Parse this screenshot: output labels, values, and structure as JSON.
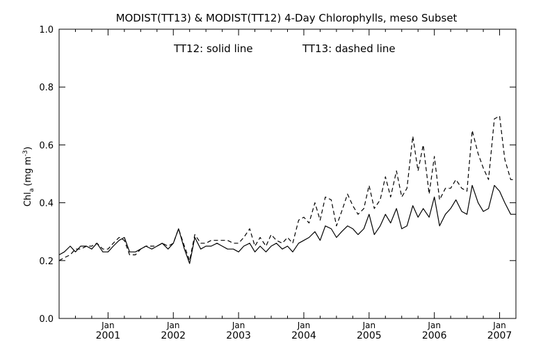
{
  "chart_data": {
    "type": "line",
    "title": "MODIST(TT13) & MODIST(TT12) 4-Day Chlorophylls, meso Subset",
    "annotation": {
      "solid": "TT12: solid line",
      "dashed": "TT13: dashed line"
    },
    "xlabel": "",
    "ylabel": "Chl",
    "ylabel_sub": "a",
    "ylabel_unit": "(mg m",
    "ylabel_sup": "-3",
    "ylabel_close": ")",
    "xlim": [
      2000.25,
      2007.25
    ],
    "ylim": [
      0.0,
      1.0
    ],
    "grid": false,
    "y_ticks": [
      "0.0",
      "0.2",
      "0.4",
      "0.6",
      "0.8",
      "1.0"
    ],
    "x_ticks": [
      {
        "x": 2001.0,
        "month": "Jan",
        "year": "2001"
      },
      {
        "x": 2002.0,
        "month": "Jan",
        "year": "2002"
      },
      {
        "x": 2003.0,
        "month": "Jan",
        "year": "2003"
      },
      {
        "x": 2004.0,
        "month": "Jan",
        "year": "2004"
      },
      {
        "x": 2005.0,
        "month": "Jan",
        "year": "2005"
      },
      {
        "x": 2006.0,
        "month": "Jan",
        "year": "2006"
      },
      {
        "x": 2007.0,
        "month": "Jan",
        "year": "2007"
      }
    ],
    "series": [
      {
        "name": "TT12",
        "style": "solid",
        "color": "#000000",
        "x": [
          2000.25,
          2000.33,
          2000.42,
          2000.5,
          2000.58,
          2000.67,
          2000.75,
          2000.83,
          2000.92,
          2001.0,
          2001.08,
          2001.17,
          2001.25,
          2001.33,
          2001.42,
          2001.5,
          2001.58,
          2001.67,
          2001.75,
          2001.83,
          2001.92,
          2002.0,
          2002.08,
          2002.17,
          2002.25,
          2002.33,
          2002.42,
          2002.5,
          2002.58,
          2002.67,
          2002.75,
          2002.83,
          2002.92,
          2003.0,
          2003.08,
          2003.17,
          2003.25,
          2003.33,
          2003.42,
          2003.5,
          2003.58,
          2003.67,
          2003.75,
          2003.83,
          2003.92,
          2004.0,
          2004.08,
          2004.17,
          2004.25,
          2004.33,
          2004.42,
          2004.5,
          2004.58,
          2004.67,
          2004.75,
          2004.83,
          2004.92,
          2005.0,
          2005.08,
          2005.17,
          2005.25,
          2005.33,
          2005.42,
          2005.5,
          2005.58,
          2005.67,
          2005.75,
          2005.83,
          2005.92,
          2006.0,
          2006.08,
          2006.17,
          2006.25,
          2006.33,
          2006.42,
          2006.5,
          2006.58,
          2006.67,
          2006.75,
          2006.83,
          2006.92,
          2007.0,
          2007.08,
          2007.17,
          2007.25
        ],
        "y": [
          0.22,
          0.23,
          0.25,
          0.23,
          0.25,
          0.25,
          0.24,
          0.26,
          0.23,
          0.23,
          0.25,
          0.27,
          0.28,
          0.23,
          0.23,
          0.24,
          0.25,
          0.24,
          0.25,
          0.26,
          0.24,
          0.26,
          0.31,
          0.24,
          0.19,
          0.28,
          0.24,
          0.25,
          0.25,
          0.26,
          0.25,
          0.24,
          0.24,
          0.23,
          0.25,
          0.26,
          0.23,
          0.25,
          0.23,
          0.25,
          0.26,
          0.24,
          0.25,
          0.23,
          0.26,
          0.27,
          0.28,
          0.3,
          0.27,
          0.32,
          0.31,
          0.28,
          0.3,
          0.32,
          0.31,
          0.29,
          0.31,
          0.36,
          0.29,
          0.32,
          0.36,
          0.33,
          0.38,
          0.31,
          0.32,
          0.39,
          0.35,
          0.38,
          0.35,
          0.42,
          0.32,
          0.36,
          0.38,
          0.41,
          0.37,
          0.36,
          0.46,
          0.4,
          0.37,
          0.38,
          0.46,
          0.44,
          0.4,
          0.36,
          0.36
        ]
      },
      {
        "name": "TT13",
        "style": "dashed",
        "color": "#000000",
        "x": [
          2000.25,
          2000.33,
          2000.42,
          2000.5,
          2000.58,
          2000.67,
          2000.75,
          2000.83,
          2000.92,
          2001.0,
          2001.08,
          2001.17,
          2001.25,
          2001.33,
          2001.42,
          2001.5,
          2001.58,
          2001.67,
          2001.75,
          2001.83,
          2001.92,
          2002.0,
          2002.08,
          2002.17,
          2002.25,
          2002.33,
          2002.42,
          2002.5,
          2002.58,
          2002.67,
          2002.75,
          2002.83,
          2002.92,
          2003.0,
          2003.08,
          2003.17,
          2003.25,
          2003.33,
          2003.42,
          2003.5,
          2003.58,
          2003.67,
          2003.75,
          2003.83,
          2003.92,
          2004.0,
          2004.08,
          2004.17,
          2004.25,
          2004.33,
          2004.42,
          2004.5,
          2004.58,
          2004.67,
          2004.75,
          2004.83,
          2004.92,
          2005.0,
          2005.08,
          2005.17,
          2005.25,
          2005.33,
          2005.42,
          2005.5,
          2005.58,
          2005.67,
          2005.75,
          2005.83,
          2005.92,
          2006.0,
          2006.08,
          2006.17,
          2006.25,
          2006.33,
          2006.42,
          2006.5,
          2006.58,
          2006.67,
          2006.75,
          2006.83,
          2006.92,
          2007.0,
          2007.08,
          2007.17,
          2007.25
        ],
        "y": [
          0.2,
          0.21,
          0.22,
          0.24,
          0.24,
          0.25,
          0.25,
          0.26,
          0.24,
          0.24,
          0.26,
          0.28,
          0.27,
          0.22,
          0.22,
          0.24,
          0.25,
          0.25,
          0.25,
          0.26,
          0.25,
          0.26,
          0.31,
          0.25,
          0.2,
          0.29,
          0.26,
          0.26,
          0.27,
          0.27,
          0.27,
          0.27,
          0.26,
          0.26,
          0.28,
          0.31,
          0.25,
          0.28,
          0.25,
          0.29,
          0.27,
          0.26,
          0.28,
          0.26,
          0.34,
          0.35,
          0.33,
          0.4,
          0.34,
          0.42,
          0.41,
          0.32,
          0.37,
          0.43,
          0.39,
          0.36,
          0.38,
          0.46,
          0.38,
          0.41,
          0.49,
          0.42,
          0.51,
          0.42,
          0.45,
          0.63,
          0.51,
          0.6,
          0.43,
          0.56,
          0.41,
          0.45,
          0.45,
          0.48,
          0.45,
          0.44,
          0.65,
          0.57,
          0.52,
          0.48,
          0.69,
          0.7,
          0.55,
          0.48,
          0.48
        ]
      }
    ]
  }
}
